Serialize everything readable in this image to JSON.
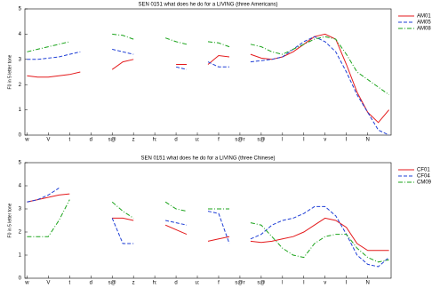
{
  "chart_data": [
    {
      "type": "line",
      "title": "SEN 0151 what does he do for a LIVING (three Americans)",
      "ylabel": "F0 in 5 letter tone",
      "x": [
        0,
        0.5,
        1,
        1.5,
        2,
        2.5,
        3,
        3.5,
        4,
        4.5,
        5,
        5.5,
        6,
        6.5,
        7,
        7.5,
        8,
        8.5,
        9,
        9.5,
        10,
        10.5,
        11,
        11.5,
        12,
        12.5,
        13,
        13.5,
        14,
        14.5,
        15,
        15.5,
        16,
        16.5,
        17
      ],
      "xlim": [
        -0.1,
        17.1
      ],
      "xticks": [
        {
          "value": 0,
          "label": "w"
        },
        {
          "value": 1,
          "label": "V"
        },
        {
          "value": 2,
          "label": "t"
        },
        {
          "value": 3,
          "label": "d"
        },
        {
          "value": 4,
          "label": "s@"
        },
        {
          "value": 5,
          "label": "z"
        },
        {
          "value": 6,
          "label": "h:"
        },
        {
          "value": 7,
          "label": "d"
        },
        {
          "value": 8,
          "label": "u:"
        },
        {
          "value": 9,
          "label": "f"
        },
        {
          "value": 10,
          "label": "s@r"
        },
        {
          "value": 11,
          "label": "s@"
        },
        {
          "value": 12,
          "label": "l"
        },
        {
          "value": 13,
          "label": "I"
        },
        {
          "value": 14,
          "label": "v"
        },
        {
          "value": 15,
          "label": "I"
        },
        {
          "value": 16,
          "label": "N"
        }
      ],
      "ylim": [
        0,
        5
      ],
      "yticks": [
        0,
        1,
        2,
        3,
        4,
        5
      ],
      "legend": "right",
      "series": [
        {
          "name": "AM01",
          "color": "#e41a1c",
          "dash": "none",
          "values": [
            2.35,
            2.3,
            2.3,
            2.35,
            2.4,
            2.5,
            null,
            null,
            2.6,
            2.9,
            3.0,
            null,
            null,
            null,
            2.8,
            2.8,
            null,
            2.8,
            3.15,
            3.1,
            null,
            3.2,
            3.05,
            3.0,
            3.1,
            3.3,
            3.6,
            3.9,
            4.0,
            3.8,
            2.8,
            1.7,
            0.9,
            0.5,
            1.0
          ]
        },
        {
          "name": "AM05",
          "color": "#1f3fd6",
          "dash": "4 2",
          "values": [
            3.0,
            3.0,
            3.05,
            3.1,
            3.2,
            3.3,
            null,
            null,
            3.4,
            3.3,
            3.2,
            null,
            null,
            null,
            2.7,
            2.6,
            null,
            2.9,
            2.7,
            2.7,
            null,
            2.9,
            2.95,
            3.0,
            3.1,
            3.4,
            3.7,
            3.9,
            3.7,
            3.3,
            2.5,
            1.6,
            0.9,
            0.2,
            0
          ]
        },
        {
          "name": "AM08",
          "color": "#1aa31a",
          "dash": "5 2 1 2",
          "values": [
            3.3,
            3.4,
            3.5,
            3.6,
            3.7,
            null,
            null,
            null,
            4.0,
            3.95,
            3.8,
            null,
            null,
            3.85,
            3.7,
            3.6,
            null,
            3.7,
            3.65,
            3.5,
            null,
            3.6,
            3.5,
            3.3,
            3.2,
            3.4,
            3.6,
            3.8,
            3.9,
            3.8,
            3.2,
            2.5,
            2.2,
            1.9,
            1.6
          ]
        }
      ]
    },
    {
      "type": "line",
      "title": "SEN 0151 what does he do for a LIVING (three Chinese)",
      "ylabel": "F0 in 5 letter tone",
      "x": [
        0,
        0.5,
        1,
        1.5,
        2,
        2.5,
        3,
        3.5,
        4,
        4.5,
        5,
        5.5,
        6,
        6.5,
        7,
        7.5,
        8,
        8.5,
        9,
        9.5,
        10,
        10.5,
        11,
        11.5,
        12,
        12.5,
        13,
        13.5,
        14,
        14.5,
        15,
        15.5,
        16,
        16.5,
        17
      ],
      "xlim": [
        -0.1,
        17.1
      ],
      "xticks": [
        {
          "value": 0,
          "label": "w"
        },
        {
          "value": 1,
          "label": "V"
        },
        {
          "value": 2,
          "label": "t"
        },
        {
          "value": 3,
          "label": "d"
        },
        {
          "value": 4,
          "label": "s@"
        },
        {
          "value": 5,
          "label": "z"
        },
        {
          "value": 6,
          "label": "h:"
        },
        {
          "value": 7,
          "label": "d"
        },
        {
          "value": 8,
          "label": "u:"
        },
        {
          "value": 9,
          "label": "f"
        },
        {
          "value": 10,
          "label": "s@r"
        },
        {
          "value": 11,
          "label": "s@"
        },
        {
          "value": 12,
          "label": "l"
        },
        {
          "value": 13,
          "label": "I"
        },
        {
          "value": 14,
          "label": "v"
        },
        {
          "value": 15,
          "label": "I"
        },
        {
          "value": 16,
          "label": "N"
        }
      ],
      "ylim": [
        0,
        5
      ],
      "yticks": [
        0,
        1,
        2,
        3,
        4,
        5
      ],
      "legend": "right",
      "series": [
        {
          "name": "CF01",
          "color": "#e41a1c",
          "dash": "none",
          "values": [
            3.3,
            3.4,
            3.5,
            3.6,
            3.65,
            null,
            null,
            null,
            2.6,
            2.6,
            2.5,
            null,
            null,
            2.3,
            2.1,
            1.9,
            null,
            1.6,
            1.7,
            1.8,
            null,
            1.6,
            1.55,
            1.6,
            1.7,
            1.8,
            2.0,
            2.3,
            2.6,
            2.5,
            2.2,
            1.5,
            1.2,
            1.2,
            1.2
          ]
        },
        {
          "name": "CF04",
          "color": "#1f3fd6",
          "dash": "4 2",
          "values": [
            3.3,
            3.4,
            3.6,
            3.9,
            null,
            null,
            null,
            null,
            2.6,
            1.5,
            1.5,
            null,
            null,
            2.5,
            2.4,
            2.3,
            null,
            2.9,
            2.8,
            1.5,
            null,
            1.7,
            1.9,
            2.3,
            2.5,
            2.6,
            2.8,
            3.1,
            3.1,
            2.7,
            1.9,
            1.0,
            0.6,
            0.5,
            0.9
          ]
        },
        {
          "name": "CM09",
          "color": "#1aa31a",
          "dash": "5 2 1 2",
          "values": [
            1.8,
            1.8,
            1.8,
            2.5,
            3.4,
            null,
            null,
            null,
            3.3,
            2.9,
            2.6,
            null,
            null,
            3.3,
            3.0,
            2.9,
            null,
            3.0,
            3.0,
            3.0,
            null,
            2.4,
            2.3,
            1.8,
            1.3,
            1.0,
            0.9,
            1.5,
            1.8,
            1.9,
            1.9,
            1.3,
            0.9,
            0.7,
            0.8
          ]
        }
      ]
    }
  ]
}
